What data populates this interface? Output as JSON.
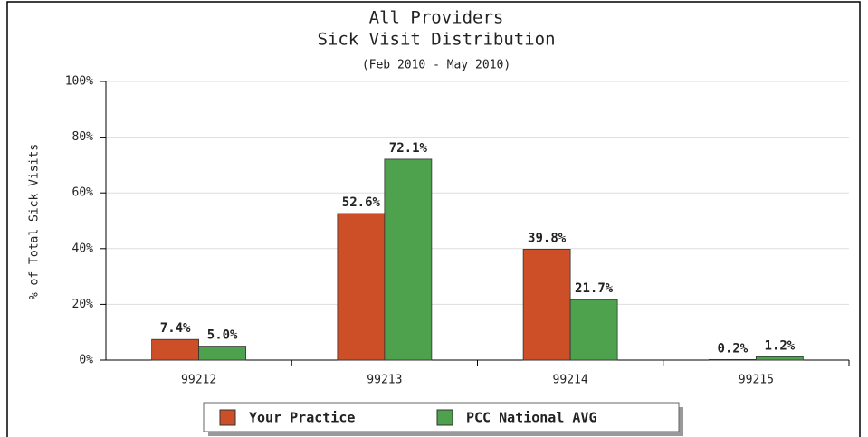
{
  "chart_data": {
    "type": "bar",
    "title": "All Providers",
    "subtitle_line": "Sick Visit Distribution",
    "subtitle": "(Feb 2010 - May 2010)",
    "y_label": "% of Total Sick Visits",
    "categories": [
      "99212",
      "99213",
      "99214",
      "99215"
    ],
    "series": [
      {
        "name": "Your Practice",
        "color": "#cc4f28",
        "values": [
          7.4,
          52.6,
          39.8,
          0.2
        ],
        "value_labels": [
          "7.4%",
          "52.6%",
          "39.8%",
          "0.2%"
        ]
      },
      {
        "name": "PCC National AVG",
        "color": "#4ea24e",
        "values": [
          5.0,
          72.1,
          21.7,
          1.2
        ],
        "value_labels": [
          "5.0%",
          "72.1%",
          "21.7%",
          "1.2%"
        ]
      }
    ],
    "ylim": [
      0,
      100
    ],
    "yticks": [
      {
        "value": 0,
        "label": "0%"
      },
      {
        "value": 20,
        "label": "20%"
      },
      {
        "value": 40,
        "label": "40%"
      },
      {
        "value": 60,
        "label": "60%"
      },
      {
        "value": 80,
        "label": "80%"
      },
      {
        "value": 100,
        "label": "100%"
      }
    ],
    "grid": true
  }
}
